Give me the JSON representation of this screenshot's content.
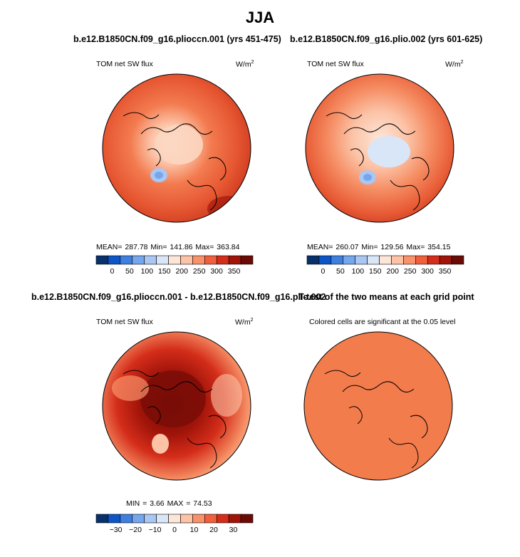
{
  "page": {
    "title": "JJA"
  },
  "panels": [
    {
      "title": "b.e12.B1850CN.f09_g16.plioccn.001 (yrs 451-475)",
      "left_label": "TOM net SW flux",
      "unit": "W/m",
      "unit_sup": "2",
      "stats": "MEAN= 287.78  Min= 141.86  Max= 363.84",
      "colorbar": {
        "colors": [
          "#08306b",
          "#0d56c7",
          "#3f7fe0",
          "#76a6ec",
          "#a9c7f2",
          "#d9e6f8",
          "#fde6d8",
          "#fcc3a7",
          "#f9916a",
          "#f1603c",
          "#d42d1a",
          "#a01409",
          "#6a0b06"
        ],
        "ticks": [
          "0",
          "50",
          "100",
          "150",
          "200",
          "250",
          "300",
          "350"
        ]
      }
    },
    {
      "title": "b.e12.B1850CN.f09_g16.plio.002 (yrs 601-625)",
      "left_label": "TOM net SW flux",
      "unit": "W/m",
      "unit_sup": "2",
      "stats": "MEAN= 260.07  Min= 129.56  Max= 354.15",
      "colorbar": {
        "colors": [
          "#08306b",
          "#0d56c7",
          "#3f7fe0",
          "#76a6ec",
          "#a9c7f2",
          "#d9e6f8",
          "#fde6d8",
          "#fcc3a7",
          "#f9916a",
          "#f1603c",
          "#d42d1a",
          "#a01409",
          "#6a0b06"
        ],
        "ticks": [
          "0",
          "50",
          "100",
          "150",
          "200",
          "250",
          "300",
          "350"
        ]
      }
    },
    {
      "title": "b.e12.B1850CN.f09_g16.plioccn.001 - b.e12.B1850CN.f09_g16.plio.002",
      "left_label": "TOM net SW flux",
      "unit": "W/m",
      "unit_sup": "2",
      "stats": "MIN =   3.66 MAX =  74.53",
      "colorbar": {
        "colors": [
          "#08306b",
          "#0d56c7",
          "#3f7fe0",
          "#76a6ec",
          "#a9c7f2",
          "#d9e6f8",
          "#fde6d8",
          "#fcc3a7",
          "#f9916a",
          "#f1603c",
          "#d42d1a",
          "#a01409",
          "#6a0b06"
        ],
        "ticks": [
          "−30",
          "−20",
          "−10",
          "0",
          "10",
          "20",
          "30"
        ]
      }
    },
    {
      "title": "T-test of the two means at each grid point",
      "center_label": "Colored cells are significant at the 0.05 level"
    }
  ],
  "chart_data": [
    {
      "type": "heatmap",
      "title": "b.e12.B1850CN.f09_g16.plioccn.001 (yrs 451-475)",
      "variable": "TOM net SW flux",
      "units": "W/m^2",
      "season": "JJA",
      "projection": "north polar stereographic",
      "mean": 287.78,
      "min": 141.86,
      "max": 363.84,
      "levels": [
        0,
        50,
        100,
        150,
        200,
        250,
        300,
        350
      ]
    },
    {
      "type": "heatmap",
      "title": "b.e12.B1850CN.f09_g16.plio.002 (yrs 601-625)",
      "variable": "TOM net SW flux",
      "units": "W/m^2",
      "season": "JJA",
      "projection": "north polar stereographic",
      "mean": 260.07,
      "min": 129.56,
      "max": 354.15,
      "levels": [
        0,
        50,
        100,
        150,
        200,
        250,
        300,
        350
      ]
    },
    {
      "type": "heatmap",
      "title": "b.e12.B1850CN.f09_g16.plioccn.001 - b.e12.B1850CN.f09_g16.plio.002",
      "variable": "TOM net SW flux difference",
      "units": "W/m^2",
      "season": "JJA",
      "min": 3.66,
      "max": 74.53,
      "levels": [
        -30,
        -20,
        -10,
        0,
        10,
        20,
        30
      ]
    },
    {
      "type": "heatmap",
      "title": "T-test of the two means at each grid point",
      "note": "Colored cells are significant at the 0.05 level",
      "significance_level": 0.05
    }
  ]
}
